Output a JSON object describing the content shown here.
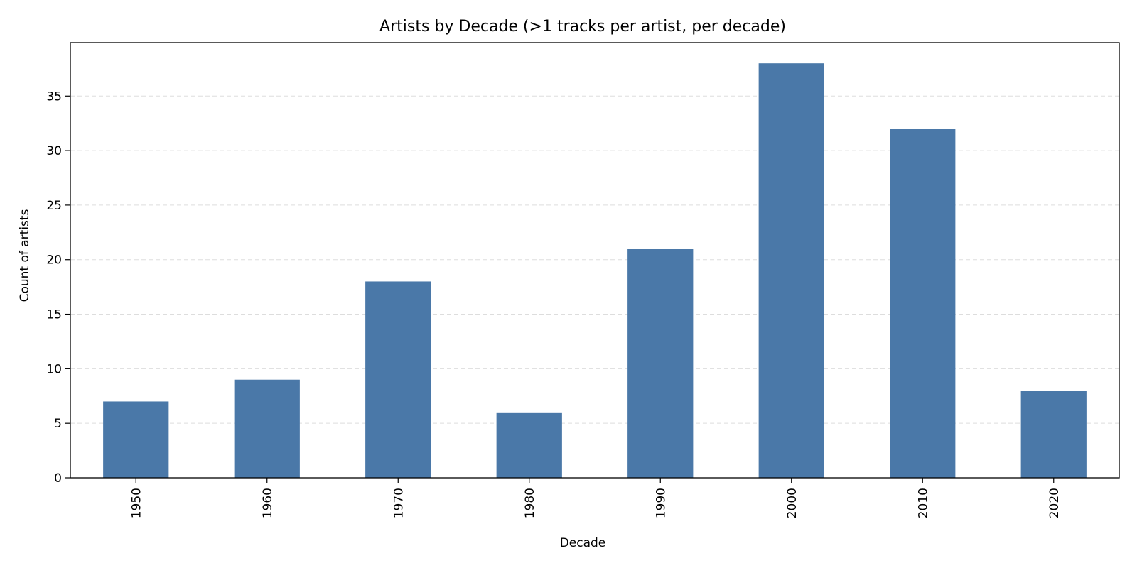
{
  "chart_data": {
    "type": "bar",
    "title": "Artists by Decade (>1 tracks per artist, per decade)",
    "xlabel": "Decade",
    "ylabel": "Count of artists",
    "categories": [
      "1950",
      "1960",
      "1970",
      "1980",
      "1990",
      "2000",
      "2010",
      "2020"
    ],
    "values": [
      7,
      9,
      18,
      6,
      21,
      38,
      32,
      8
    ],
    "ylim": [
      0,
      39.9
    ],
    "yticks": [
      0,
      5,
      10,
      15,
      20,
      25,
      30,
      35
    ],
    "grid": "y-dashed",
    "legend": "none",
    "colors": {
      "bar": "#4a78a8",
      "grid": "#dddddd",
      "axis": "#000000"
    }
  }
}
